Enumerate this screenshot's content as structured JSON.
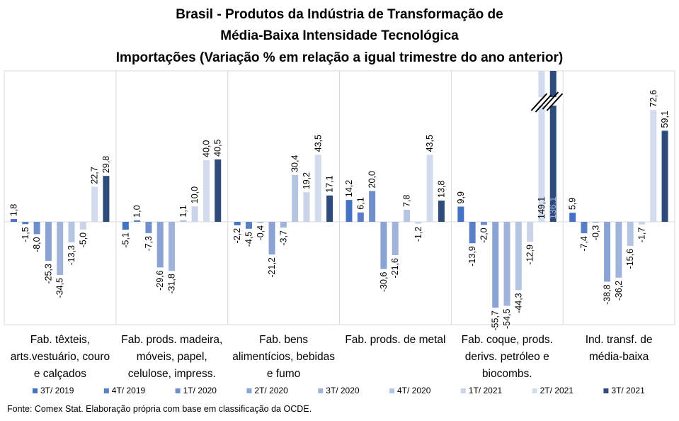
{
  "chart_data": {
    "type": "bar",
    "title": [
      "Brasil - Produtos da Indústria de Transformação de",
      "Média-Baixa Intensidade Tecnológica",
      "Importações (Variação % em relação a igual trimestre do ano anterior)"
    ],
    "categories": [
      [
        "Fab. têxteis,",
        "arts.vestuário, couro",
        "e calçados"
      ],
      [
        "Fab. prods. madeira,",
        "móveis, papel,",
        "celulose, impress."
      ],
      [
        "Fab. bens",
        "alimentícios, bebidas",
        "e fumo"
      ],
      [
        "Fab. prods. de metal"
      ],
      [
        "Fab. coque, prods.",
        "derivs. petróleo e",
        "biocombs."
      ],
      [
        "Ind. transf. de",
        "média-baixa"
      ]
    ],
    "series": [
      {
        "name": "3T/ 2019",
        "color": "#4472c4",
        "values": [
          1.8,
          -5.1,
          -2.2,
          14.2,
          9.9,
          5.9
        ],
        "labels": [
          "1,8",
          "-5,1",
          "-2,2",
          "14,2",
          "9,9",
          "5,9"
        ]
      },
      {
        "name": "4T/ 2019",
        "color": "#5b7fc6",
        "values": [
          -1.5,
          1.0,
          -4.5,
          6.1,
          -13.9,
          -7.4
        ],
        "labels": [
          "-1,5",
          "1,0",
          "-4,5",
          "6,1",
          "-13,9",
          "-7,4"
        ]
      },
      {
        "name": "1T/ 2020",
        "color": "#6f8ecb",
        "values": [
          -8.0,
          -7.3,
          -0.4,
          20.0,
          -2.0,
          -0.3
        ],
        "labels": [
          "-8,0",
          "-7,3",
          "-0,4",
          "20,0",
          "-2,0",
          "-0,3"
        ]
      },
      {
        "name": "2T/ 2020",
        "color": "#8aa2d4",
        "values": [
          -25.3,
          -29.6,
          -21.2,
          -30.6,
          -55.7,
          -38.8
        ],
        "labels": [
          "-25,3",
          "-29,6",
          "-21,2",
          "-30,6",
          "-55,7",
          "-38,8"
        ]
      },
      {
        "name": "3T/ 2020",
        "color": "#9fb3db",
        "values": [
          -34.5,
          -31.8,
          -3.7,
          -21.6,
          -54.5,
          -36.2
        ],
        "labels": [
          "-34,5",
          "-31,8",
          "-3,7",
          "-21,6",
          "-54,5",
          "-36,2"
        ]
      },
      {
        "name": "4T/ 2020",
        "color": "#b4c4e3",
        "values": [
          -13.3,
          1.1,
          30.4,
          7.8,
          -44.3,
          -15.6
        ],
        "labels": [
          "-13,3",
          "1,1",
          "30,4",
          "7,8",
          "-44,3",
          "-15,6"
        ]
      },
      {
        "name": "1T/ 2021",
        "color": "#c9d4ea",
        "values": [
          -5.0,
          10.0,
          19.2,
          -1.2,
          -12.9,
          -1.7
        ],
        "labels": [
          "-5,0",
          "10,0",
          "19,2",
          "-1,2",
          "-12,9",
          "-1,7"
        ]
      },
      {
        "name": "2T/ 2021",
        "color": "#d2dcee",
        "values": [
          22.7,
          40.0,
          43.5,
          43.5,
          149.1,
          72.6
        ],
        "labels": [
          "22,7",
          "40,0",
          "43,5",
          "43,5",
          "149,1",
          "72,6"
        ]
      },
      {
        "name": "3T/ 2021",
        "color": "#2f4b7c",
        "values": [
          29.8,
          40.5,
          17.1,
          13.8,
          136.1,
          59.1
        ],
        "labels": [
          "29,8",
          "40,5",
          "17,1",
          "13,8",
          "136,1",
          "59,1"
        ]
      }
    ],
    "axis_break": {
      "category_index": 4,
      "series": [
        "2T/ 2021",
        "3T/ 2021"
      ]
    },
    "grid": false,
    "legend_position": "bottom",
    "source": "Fonte: Comex Stat. Elaboração própria com base em classificação da OCDE."
  }
}
